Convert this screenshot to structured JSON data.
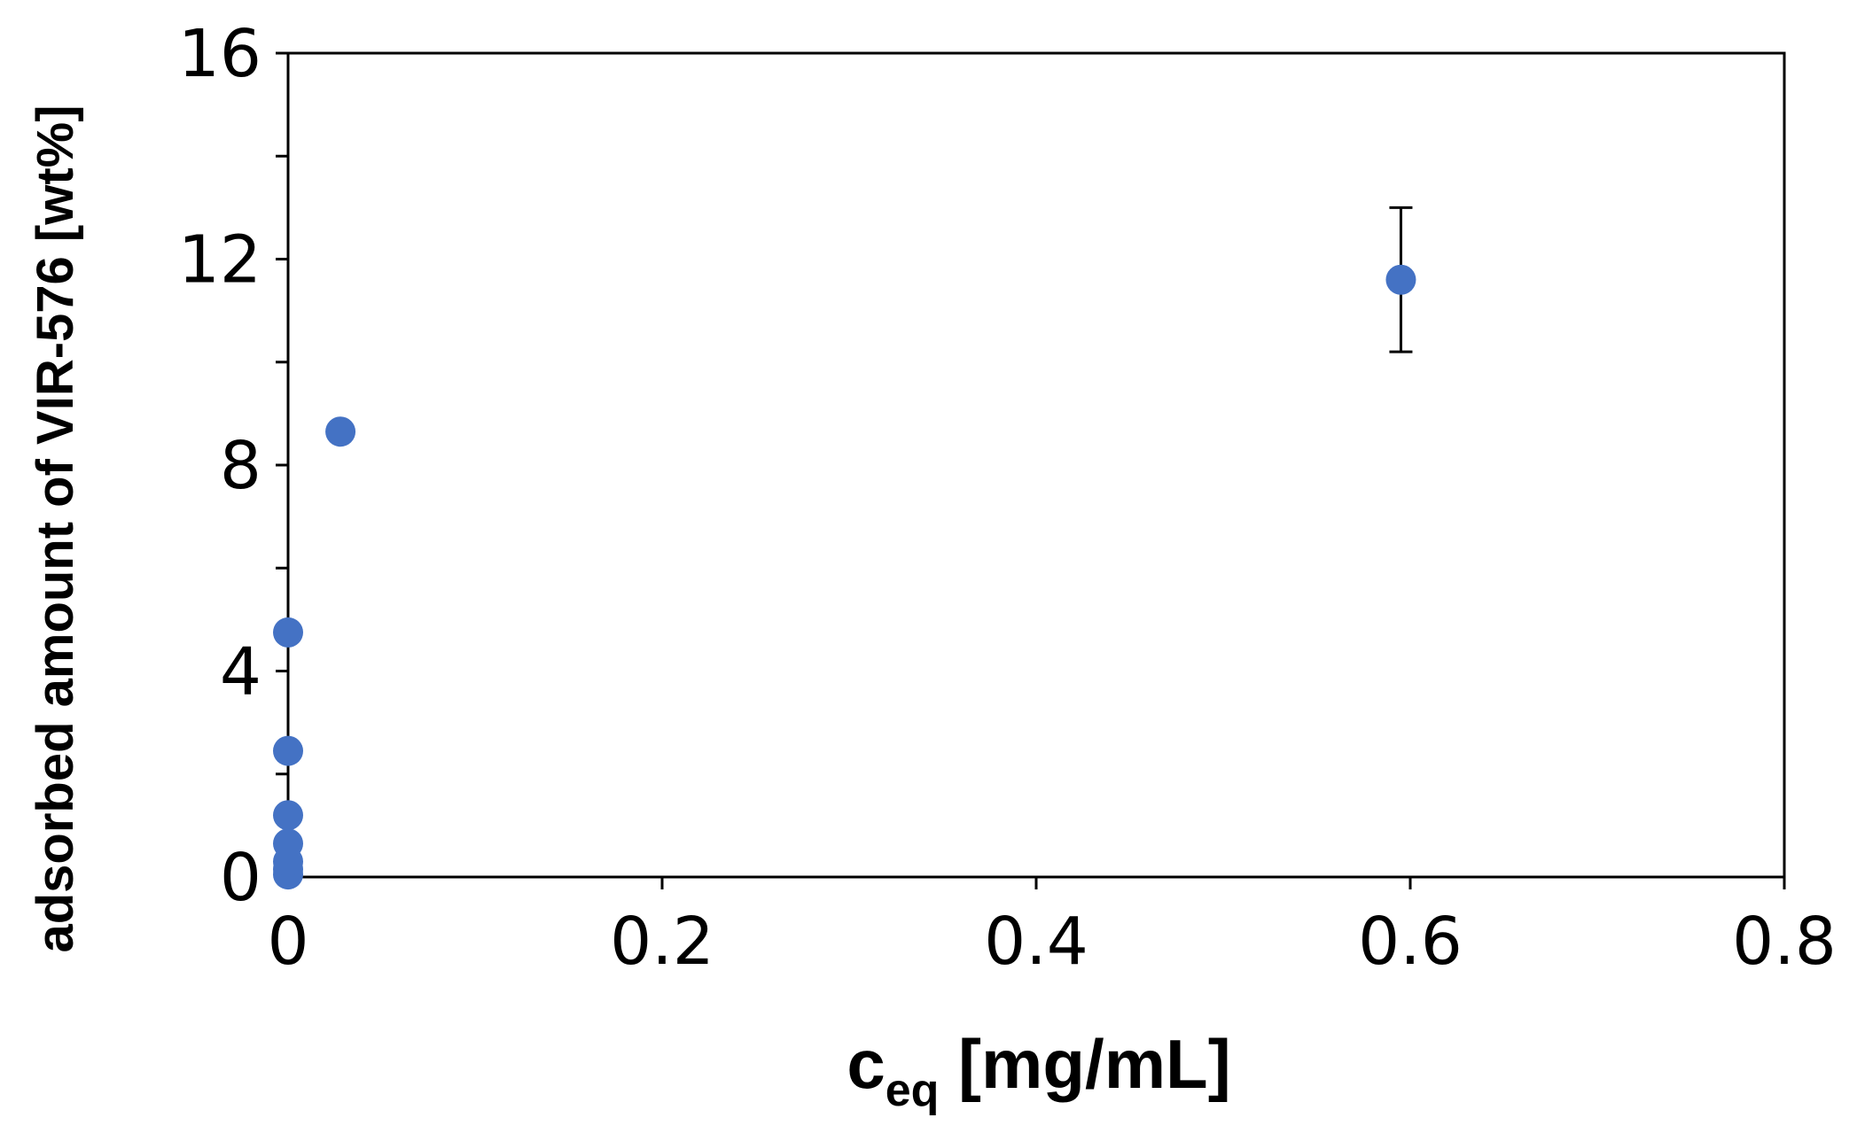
{
  "chart_data": {
    "type": "scatter",
    "title": "",
    "xlabel": {
      "base": "c",
      "subscript": "eq",
      "suffix": " [mg/mL]"
    },
    "ylabel": "adsorbed amount of VIR-576 [wt%]",
    "xlim": [
      0,
      0.8
    ],
    "ylim": [
      0,
      16
    ],
    "x_ticks": [
      0,
      0.2,
      0.4,
      0.6,
      0.8
    ],
    "x_tick_labels": [
      "0",
      "0.2",
      "0.4",
      "0.6",
      "0.8"
    ],
    "y_ticks": [
      0,
      4,
      8,
      12,
      16
    ],
    "y_tick_labels": [
      "0",
      "4",
      "8",
      "12",
      "16"
    ],
    "y_minor_ticks": [
      2,
      6,
      10,
      14
    ],
    "grid": false,
    "legend": "none",
    "series": [
      {
        "color": "#4472C4",
        "points": [
          {
            "x": 0.0,
            "y": 0.05
          },
          {
            "x": 0.0,
            "y": 0.15
          },
          {
            "x": 0.0,
            "y": 0.3
          },
          {
            "x": 0.0,
            "y": 0.65
          },
          {
            "x": 0.0,
            "y": 1.2
          },
          {
            "x": 0.0,
            "y": 2.45
          },
          {
            "x": 0.0,
            "y": 4.75
          },
          {
            "x": 0.028,
            "y": 8.65
          },
          {
            "x": 0.595,
            "y": 11.6,
            "y_err": 1.4
          }
        ]
      }
    ]
  }
}
